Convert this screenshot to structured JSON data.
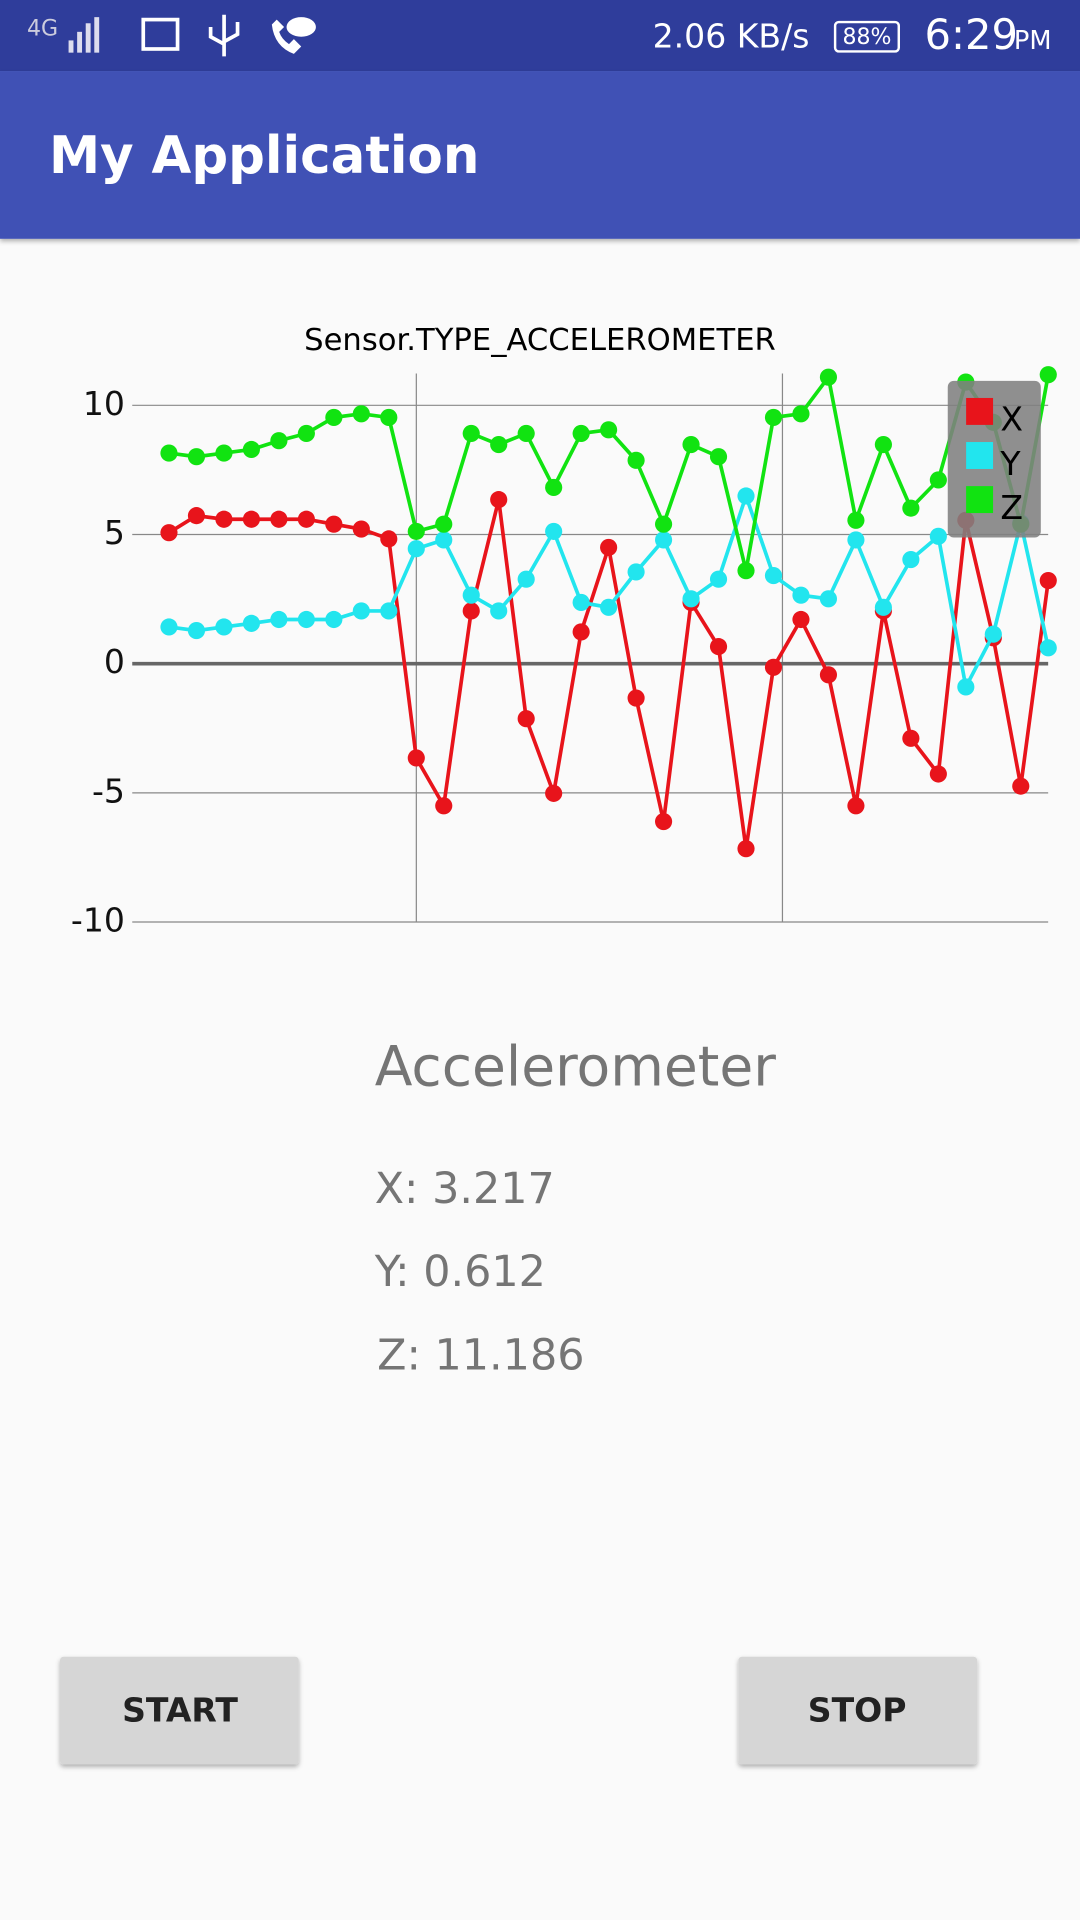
{
  "status_bar": {
    "network": "4G",
    "speed": "2.06 KB/s",
    "battery": "88%",
    "time": "6:29",
    "ampm": "PM"
  },
  "app_bar": {
    "title": "My Application"
  },
  "chart_data": {
    "type": "line",
    "title": "Sensor.TYPE_ACCELEROMETER",
    "ylim": [
      -10,
      11.2
    ],
    "yticks": [
      -10,
      -5,
      0,
      5,
      10
    ],
    "grid": true,
    "legend": "top-right",
    "series": [
      {
        "name": "X",
        "color": "#e8141b",
        "values": [
          5.07,
          5.73,
          5.59,
          5.59,
          5.59,
          5.59,
          5.4,
          5.21,
          4.83,
          -3.65,
          -5.5,
          2.04,
          6.35,
          -2.13,
          -5.02,
          1.23,
          4.5,
          -1.33,
          -6.11,
          2.37,
          0.66,
          -7.16,
          -0.14,
          1.71,
          -0.43,
          -5.5,
          2.04,
          -2.89,
          -4.27,
          5.55,
          1.0,
          -4.74,
          3.217
        ]
      },
      {
        "name": "Y",
        "color": "#22e5ee",
        "values": [
          1.42,
          1.28,
          1.42,
          1.56,
          1.71,
          1.71,
          1.71,
          2.04,
          2.04,
          4.45,
          4.79,
          2.65,
          2.04,
          3.27,
          5.12,
          2.37,
          2.18,
          3.55,
          4.79,
          2.51,
          3.27,
          6.49,
          3.41,
          2.65,
          2.51,
          4.79,
          2.18,
          4.03,
          4.93,
          -0.9,
          1.14,
          5.45,
          0.612
        ]
      },
      {
        "name": "Z",
        "color": "#11e311",
        "values": [
          8.15,
          8.01,
          8.15,
          8.29,
          8.63,
          8.91,
          9.53,
          9.67,
          9.53,
          5.12,
          5.4,
          8.91,
          8.48,
          8.91,
          6.82,
          8.91,
          9.05,
          7.87,
          5.4,
          8.48,
          8.01,
          3.6,
          9.53,
          9.67,
          11.09,
          5.55,
          8.48,
          6.02,
          7.11,
          10.9,
          9.34,
          5.4,
          11.186
        ]
      }
    ]
  },
  "sensor": {
    "heading": "Accelerometer",
    "readings": [
      "X: 3.217",
      "Y: 0.612",
      "Z: 11.186"
    ]
  },
  "buttons": [
    "START",
    "STOP"
  ]
}
